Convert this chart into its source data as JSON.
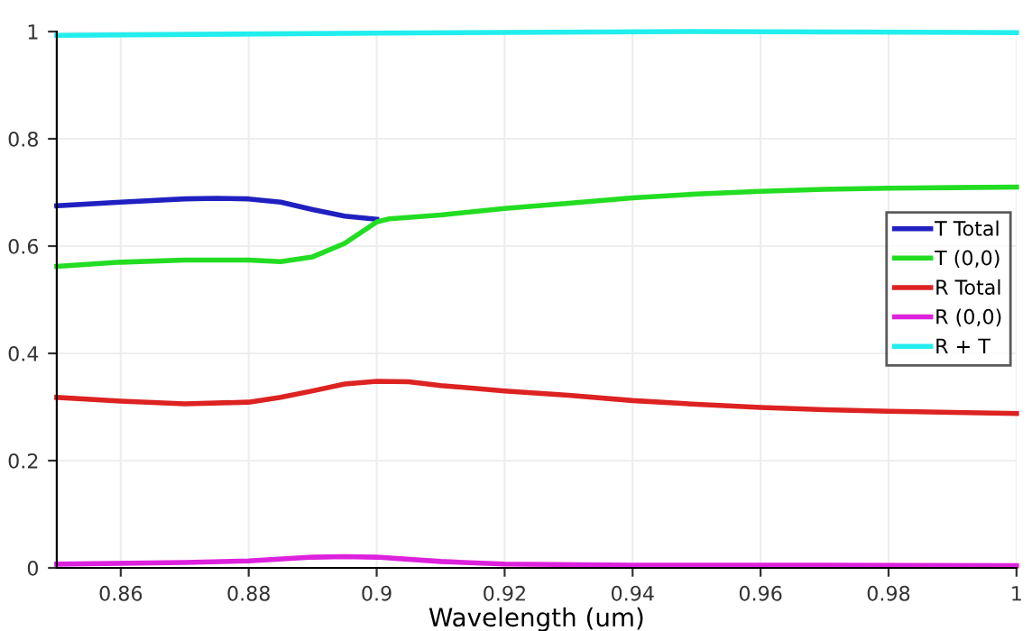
{
  "chart_data": {
    "type": "line",
    "xlabel": "Wavelength (um)",
    "xlim": [
      0.85,
      1.0
    ],
    "xticks": [
      0.86,
      0.88,
      {
        "value": 0.9,
        "label": "0.9"
      },
      0.92,
      0.94,
      0.96,
      0.98,
      {
        "value": 1.0,
        "label": "1"
      }
    ],
    "ylim": [
      0,
      1.0
    ],
    "yticks": [
      0,
      0.2,
      0.4,
      0.6,
      0.8,
      {
        "value": 1.0,
        "label": "1"
      }
    ],
    "grid": true,
    "legend": "right",
    "line_style": "solid",
    "marker": "none",
    "series": [
      {
        "name": "T Total",
        "color": "#2020c0",
        "x": [
          0.85,
          0.86,
          0.87,
          0.875,
          0.88,
          0.885,
          0.89,
          0.895,
          0.9
        ],
        "values": [
          0.675,
          0.682,
          0.688,
          0.689,
          0.688,
          0.682,
          0.668,
          0.656,
          0.65
        ]
      },
      {
        "name": "T (0,0)",
        "color": "#22dd22",
        "x": [
          0.85,
          0.86,
          0.87,
          0.88,
          0.885,
          0.89,
          0.895,
          0.9,
          0.902,
          0.91,
          0.92,
          0.93,
          0.94,
          0.95,
          0.96,
          0.97,
          0.98,
          0.99,
          1.0
        ],
        "values": [
          0.562,
          0.57,
          0.574,
          0.574,
          0.571,
          0.58,
          0.605,
          0.645,
          0.651,
          0.658,
          0.67,
          0.68,
          0.69,
          0.697,
          0.702,
          0.706,
          0.708,
          0.709,
          0.71
        ]
      },
      {
        "name": "R Total",
        "color": "#dd2222",
        "x": [
          0.85,
          0.86,
          0.87,
          0.88,
          0.885,
          0.89,
          0.895,
          0.9,
          0.905,
          0.91,
          0.92,
          0.93,
          0.94,
          0.95,
          0.96,
          0.97,
          0.98,
          0.99,
          1.0
        ],
        "values": [
          0.318,
          0.311,
          0.306,
          0.309,
          0.318,
          0.33,
          0.343,
          0.348,
          0.347,
          0.34,
          0.33,
          0.322,
          0.312,
          0.305,
          0.299,
          0.295,
          0.292,
          0.29,
          0.288
        ]
      },
      {
        "name": "R (0,0)",
        "color": "#dd22dd",
        "x": [
          0.85,
          0.87,
          0.88,
          0.89,
          0.895,
          0.9,
          0.91,
          0.92,
          0.94,
          0.97,
          1.0
        ],
        "values": [
          0.007,
          0.01,
          0.013,
          0.02,
          0.021,
          0.02,
          0.012,
          0.007,
          0.005,
          0.005,
          0.004
        ]
      },
      {
        "name": "R + T",
        "color": "#22eeee",
        "x": [
          0.85,
          0.9,
          0.95,
          1.0
        ],
        "values": [
          0.993,
          0.997,
          1.0,
          0.998
        ]
      }
    ]
  }
}
